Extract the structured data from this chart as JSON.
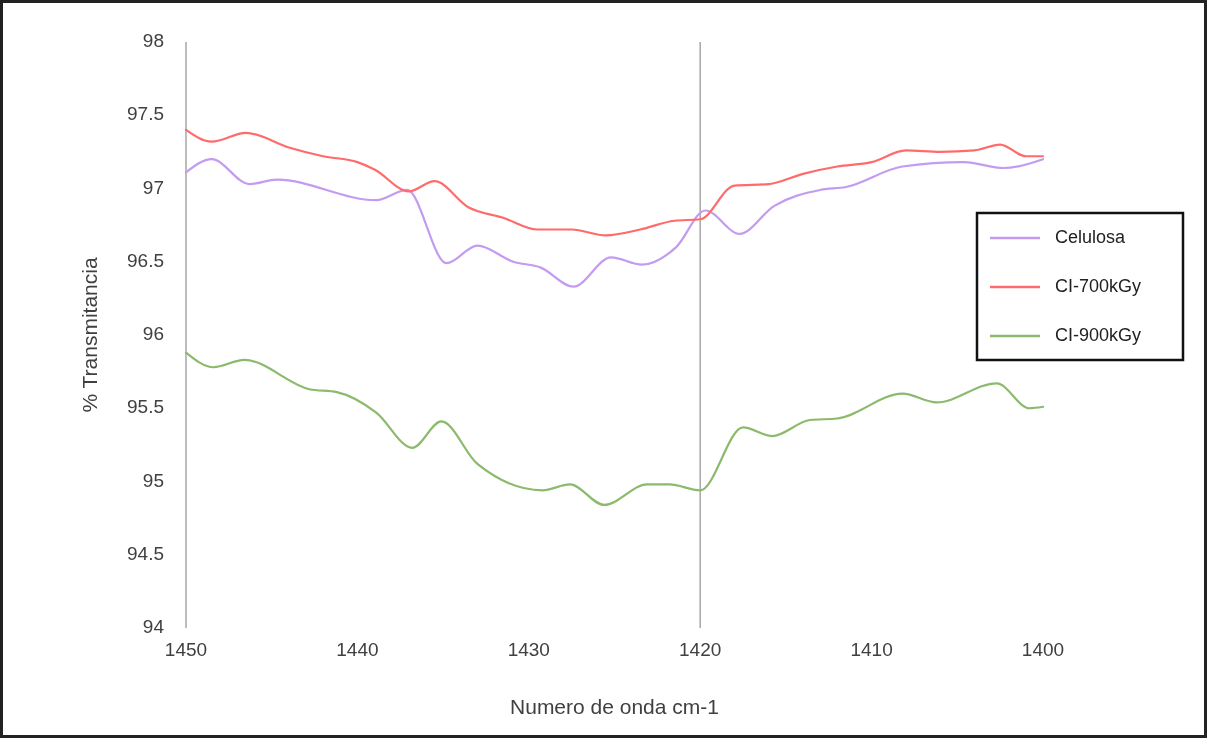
{
  "chart_data": {
    "type": "line",
    "xlabel": "Numero de onda cm-1",
    "ylabel": "% Transmitancia",
    "xlim": [
      1450,
      1400
    ],
    "xticks": [
      1450,
      1440,
      1430,
      1420,
      1410,
      1400
    ],
    "ylim": [
      94,
      98
    ],
    "yticks": [
      94,
      94.5,
      95,
      95.5,
      96,
      96.5,
      97,
      97.5,
      98
    ],
    "grid": false,
    "legend": "right",
    "line_style": "solid",
    "marker": "none",
    "ref_lines": [
      {
        "axis": "x",
        "value": 1420,
        "color": "#a6a6a6"
      }
    ],
    "series": [
      {
        "name": "Celulosa",
        "color": "#c39bf0",
        "x": [
          1450,
          1448.5,
          1446.3,
          1444.7,
          1438.9,
          1437.1,
          1434.8,
          1433,
          1430.9,
          1429.3,
          1427.4,
          1425.2,
          1423.4,
          1421.4,
          1419.7,
          1417.7,
          1415.7,
          1413,
          1411.5,
          1408.2,
          1404.6,
          1402.3,
          1400
        ],
        "values": [
          97.11,
          97.2,
          97.03,
          97.06,
          96.92,
          96.99,
          96.49,
          96.61,
          96.5,
          96.46,
          96.33,
          96.53,
          96.48,
          96.6,
          96.85,
          96.69,
          96.88,
          96.99,
          97.01,
          97.15,
          97.18,
          97.14,
          97.2
        ]
      },
      {
        "name": "CI-700kGy",
        "color": "#ff6b6b",
        "x": [
          1450,
          1448.5,
          1446.5,
          1444,
          1442,
          1440,
          1439,
          1437,
          1435.5,
          1433.5,
          1431.5,
          1429.5,
          1427.5,
          1425.5,
          1423.5,
          1421.5,
          1420,
          1418,
          1416,
          1414,
          1412,
          1410,
          1408,
          1406,
          1404,
          1402.5,
          1401,
          1400
        ],
        "values": [
          97.4,
          97.32,
          97.38,
          97.28,
          97.22,
          97.18,
          97.13,
          96.98,
          97.05,
          96.87,
          96.8,
          96.72,
          96.72,
          96.68,
          96.72,
          96.78,
          96.79,
          97.02,
          97.03,
          97.1,
          97.15,
          97.18,
          97.26,
          97.25,
          97.26,
          97.3,
          97.22,
          97.22
        ]
      },
      {
        "name": "CI-900kGy",
        "color": "#8cba6c",
        "x": [
          1450,
          1448.4,
          1446.6,
          1442.8,
          1441.2,
          1438.9,
          1436.8,
          1435.1,
          1433,
          1429.2,
          1427.6,
          1425.6,
          1423.1,
          1421.8,
          1420,
          1417.5,
          1415.8,
          1413.6,
          1412,
          1408.2,
          1406.2,
          1402.7,
          1400.8,
          1400
        ],
        "values": [
          95.88,
          95.78,
          95.83,
          95.63,
          95.61,
          95.47,
          95.23,
          95.41,
          95.12,
          94.94,
          94.98,
          94.84,
          94.98,
          94.98,
          94.94,
          95.37,
          95.31,
          95.42,
          95.43,
          95.6,
          95.54,
          95.67,
          95.5,
          95.51
        ]
      }
    ]
  }
}
